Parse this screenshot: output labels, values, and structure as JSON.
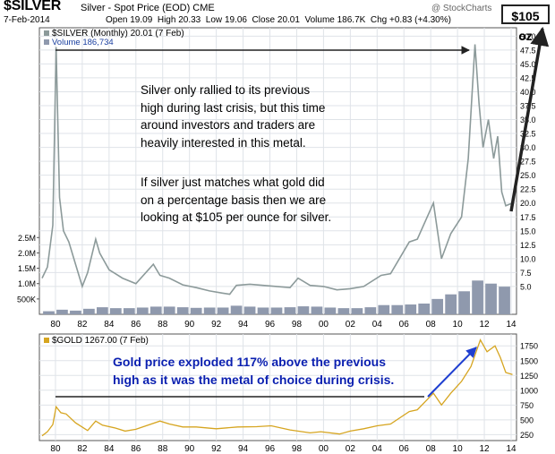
{
  "header": {
    "symbol": "$SILVER",
    "description": "Silver - Spot Price (EOD) CME",
    "date": "7-Feb-2014",
    "open_label": "Open",
    "open": "19.09",
    "high_label": "High",
    "high": "20.33",
    "low_label": "Low",
    "low": "19.06",
    "close_label": "Close",
    "close": "20.01",
    "volume_label": "Volume",
    "volume": "186.7K",
    "chg_label": "Chg",
    "chg": "+0.83 (+4.30%)",
    "brand": "@ StockCharts",
    "price_badge": "$105 oz"
  },
  "colors": {
    "silver_line": "#8c9a9a",
    "volume_bar": "#8f99ad",
    "gold_line": "#d6a520",
    "arrow_blue": "#1f3fd0",
    "text_blue": "#0a1fb0",
    "grid": "#dfe3e8"
  },
  "annotations": {
    "silver_text_1": [
      "Silver only rallied to its previous",
      "high during last crisis, but this time",
      "around investors and traders are",
      "heavily interested in this metal."
    ],
    "silver_text_2": [
      "If silver just matches what gold did",
      "on a percentage basis then we are",
      "looking at $105 per ounce for silver."
    ],
    "gold_text": [
      "Gold price exploded 117% above the previous",
      "high as it was the metal of choice during crisis."
    ]
  },
  "chart_data": [
    {
      "type": "line",
      "title": "$SILVER (Monthly) 20.01 (7 Feb)",
      "legend_volume": "Volume 186,734",
      "x_ticks": [
        "80",
        "82",
        "84",
        "86",
        "88",
        "90",
        "92",
        "94",
        "96",
        "98",
        "00",
        "02",
        "04",
        "06",
        "08",
        "10",
        "12",
        "14"
      ],
      "y_ticks": [
        "5.0",
        "7.5",
        "10.0",
        "12.5",
        "15.0",
        "17.5",
        "20.0",
        "22.5",
        "25.0",
        "27.5",
        "30.0",
        "32.5",
        "35.0",
        "37.5",
        "40.0",
        "42.5",
        "45.0",
        "47.5",
        "50.0"
      ],
      "ylim": [
        0,
        51.5
      ],
      "y_scale": "linear",
      "grid": true,
      "series": [
        {
          "name": "$SILVER",
          "x": [
            1979.0,
            1979.4,
            1979.8,
            1980.05,
            1980.3,
            1980.6,
            1981.0,
            1981.5,
            1982.0,
            1982.4,
            1983.0,
            1983.3,
            1984.0,
            1985.0,
            1986.0,
            1987.3,
            1987.8,
            1988.5,
            1989.5,
            1990.5,
            1991.5,
            1992.5,
            1993.0,
            1993.5,
            1994.5,
            1995.5,
            1996.5,
            1997.5,
            1998.1,
            1999.0,
            2000.0,
            2001.0,
            2002.0,
            2003.0,
            2004.3,
            2005.0,
            2006.4,
            2007.0,
            2008.2,
            2008.8,
            2009.5,
            2010.3,
            2010.8,
            2011.3,
            2011.6,
            2011.9,
            2012.3,
            2012.7,
            2013.0,
            2013.3,
            2013.6,
            2014.1
          ],
          "values": [
            6.5,
            8.5,
            16.0,
            48.0,
            21.0,
            15.0,
            13.0,
            9.0,
            5.0,
            7.5,
            13.5,
            11.0,
            8.0,
            6.5,
            5.5,
            9.0,
            7.0,
            6.5,
            5.3,
            4.8,
            4.2,
            3.8,
            3.6,
            5.2,
            5.4,
            5.2,
            5.0,
            4.8,
            6.5,
            5.2,
            5.0,
            4.4,
            4.6,
            5.0,
            7.0,
            7.3,
            13.0,
            13.5,
            20.0,
            10.0,
            14.5,
            17.5,
            28.0,
            48.5,
            38.0,
            30.0,
            35.0,
            28.0,
            32.0,
            22.0,
            19.5,
            20.0
          ]
        },
        {
          "name": "Volume",
          "type": "bar",
          "y_ticks": [
            "500K",
            "1.0M",
            "1.5M",
            "2.0M",
            "2.5M"
          ],
          "x": [
            1979.5,
            1980.5,
            1981.5,
            1982.5,
            1983.5,
            1984.5,
            1985.5,
            1986.5,
            1987.5,
            1988.5,
            1989.5,
            1990.5,
            1991.5,
            1992.5,
            1993.5,
            1994.5,
            1995.5,
            1996.5,
            1997.5,
            1998.5,
            1999.5,
            2000.5,
            2001.5,
            2002.5,
            2003.5,
            2004.5,
            2005.5,
            2006.5,
            2007.5,
            2008.5,
            2009.5,
            2010.5,
            2011.5,
            2012.5,
            2013.5
          ],
          "values": [
            100000,
            150000,
            120000,
            180000,
            230000,
            200000,
            200000,
            220000,
            250000,
            250000,
            230000,
            210000,
            220000,
            220000,
            280000,
            250000,
            220000,
            220000,
            230000,
            260000,
            250000,
            220000,
            200000,
            200000,
            230000,
            300000,
            300000,
            320000,
            350000,
            500000,
            650000,
            750000,
            1100000,
            1000000,
            900000
          ]
        }
      ]
    },
    {
      "type": "line",
      "title": "$GOLD 1267.00 (7 Feb)",
      "x_ticks": [
        "80",
        "82",
        "84",
        "86",
        "88",
        "90",
        "92",
        "94",
        "96",
        "98",
        "00",
        "02",
        "04",
        "06",
        "08",
        "10",
        "12",
        "14"
      ],
      "y_ticks": [
        "250",
        "500",
        "750",
        "1000",
        "1250",
        "1500",
        "1750"
      ],
      "ylim": [
        150,
        1950
      ],
      "grid": true,
      "series": [
        {
          "name": "$GOLD",
          "x": [
            1979.0,
            1979.4,
            1979.8,
            1980.05,
            1980.4,
            1980.8,
            1981.5,
            1982.4,
            1983.0,
            1983.5,
            1984.5,
            1985.2,
            1986.0,
            1987.8,
            1988.5,
            1989.5,
            1990.5,
            1992.0,
            1993.6,
            1995.0,
            1996.1,
            1997.5,
            1999.0,
            1999.8,
            2001.2,
            2002.0,
            2003.0,
            2004.0,
            2005.0,
            2006.4,
            2007.0,
            2008.2,
            2008.8,
            2009.5,
            2010.3,
            2011.0,
            2011.7,
            2012.2,
            2012.8,
            2013.2,
            2013.6,
            2014.1
          ],
          "values": [
            230,
            300,
            420,
            720,
            620,
            600,
            450,
            320,
            480,
            410,
            360,
            310,
            340,
            480,
            430,
            380,
            380,
            350,
            380,
            385,
            400,
            330,
            280,
            300,
            260,
            310,
            350,
            400,
            430,
            640,
            670,
            950,
            750,
            950,
            1150,
            1400,
            1850,
            1650,
            1750,
            1550,
            1300,
            1267
          ]
        }
      ]
    }
  ]
}
